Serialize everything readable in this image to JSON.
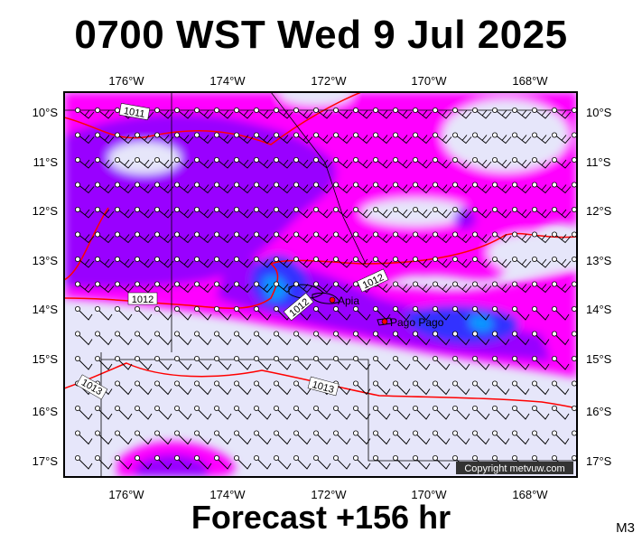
{
  "title": "0700 WST Wed 9 Jul 2025",
  "footer": "Forecast +156 hr",
  "model_label": "M3",
  "copyright": "Copyright metvuw.com",
  "lon_ticks": [
    "176°W",
    "174°W",
    "172°W",
    "170°W",
    "168°W"
  ],
  "lat_ticks": [
    "10°S",
    "11°S",
    "12°S",
    "13°S",
    "14°S",
    "15°S",
    "16°S",
    "17°S"
  ],
  "isobar_labels": [
    "1011",
    "1012",
    "1012",
    "1012",
    "1013",
    "1013"
  ],
  "places": [
    {
      "name": "Apia",
      "lon": -171.76,
      "lat": -13.83
    },
    {
      "name": "Pago Pago",
      "lon": -170.7,
      "lat": -14.28
    }
  ],
  "colors": {
    "rain_light": "#e6e6fa",
    "rain_moderate": "#ff00ff",
    "rain_heavy": "#9900ff",
    "rain_very_heavy": "#3333ff",
    "rain_extreme": "#0066ff",
    "isobar": "#ff0000",
    "land": "#000000"
  }
}
